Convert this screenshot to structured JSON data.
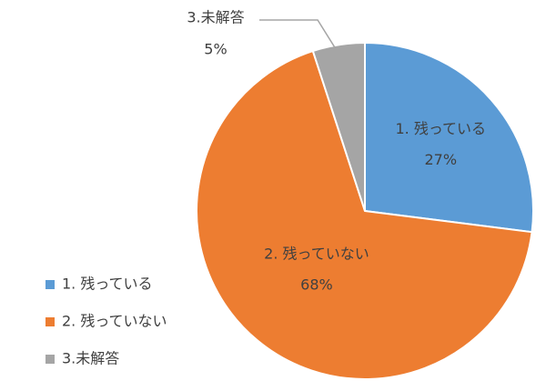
{
  "chart_data": {
    "type": "pie",
    "categories": [
      "1. 残っている",
      "2. 残っていない",
      "3.未解答"
    ],
    "values": [
      27,
      68,
      5
    ],
    "value_labels": [
      "27%",
      "68%",
      "5%"
    ],
    "colors": [
      "#5b9bd5",
      "#ed7d31",
      "#a5a5a5"
    ],
    "legend": "left"
  }
}
